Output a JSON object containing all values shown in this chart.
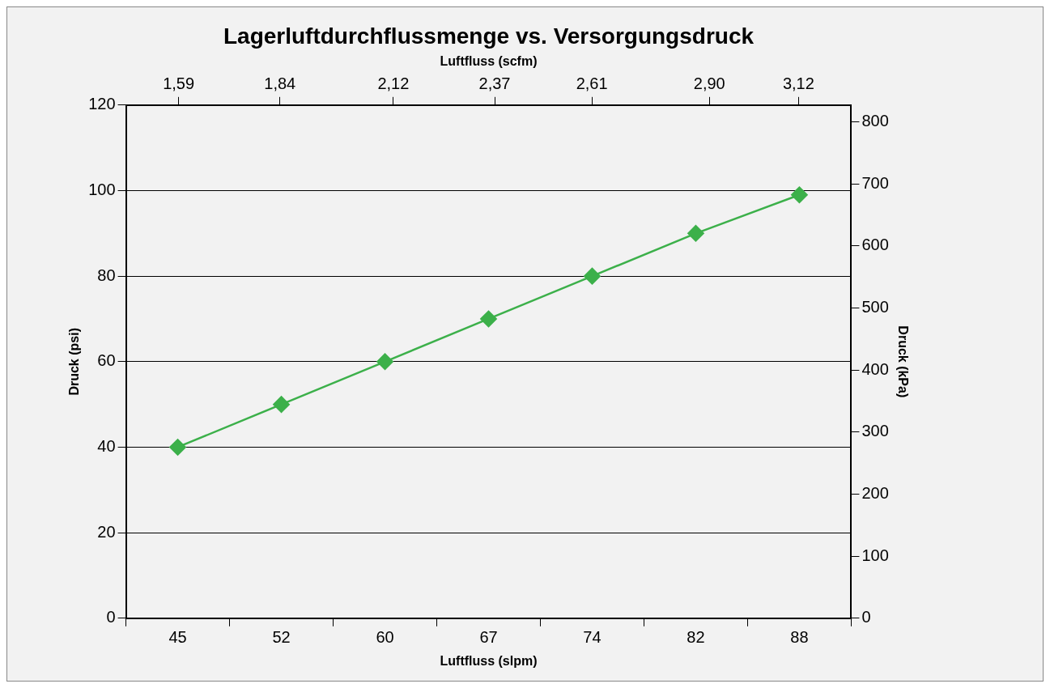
{
  "chart_data": {
    "type": "line",
    "title": "Lagerluftdurchflussmenge vs. Versorgungsdruck",
    "xlabel": "Luftfluss (slpm)",
    "x2label": "Luftfluss (scfm)",
    "ylabel": "Druck (psi)",
    "y2label": "Druck (kPa)",
    "categories": [
      "45",
      "52",
      "60",
      "67",
      "74",
      "82",
      "88"
    ],
    "x2lim": [
      1.46,
      3.25
    ],
    "x2ticks": [
      {
        "value": 1.59,
        "label": "1,59"
      },
      {
        "value": 1.84,
        "label": "1,84"
      },
      {
        "value": 2.12,
        "label": "2,12"
      },
      {
        "value": 2.37,
        "label": "2,37"
      },
      {
        "value": 2.61,
        "label": "2,61"
      },
      {
        "value": 2.9,
        "label": "2,90"
      },
      {
        "value": 3.12,
        "label": "3,12"
      }
    ],
    "series": [
      {
        "color": "#3cb04a",
        "values": [
          40,
          50,
          60,
          70,
          80,
          90,
          99
        ]
      }
    ],
    "ylim": [
      0,
      120
    ],
    "yticks": [
      0,
      20,
      40,
      60,
      80,
      100,
      120
    ],
    "y2lim": [
      0,
      827
    ],
    "y2ticks": [
      0,
      100,
      200,
      300,
      400,
      500,
      600,
      700,
      800
    ],
    "grid": "y",
    "legend": false,
    "marker": "diamond",
    "line_style": "solid"
  }
}
